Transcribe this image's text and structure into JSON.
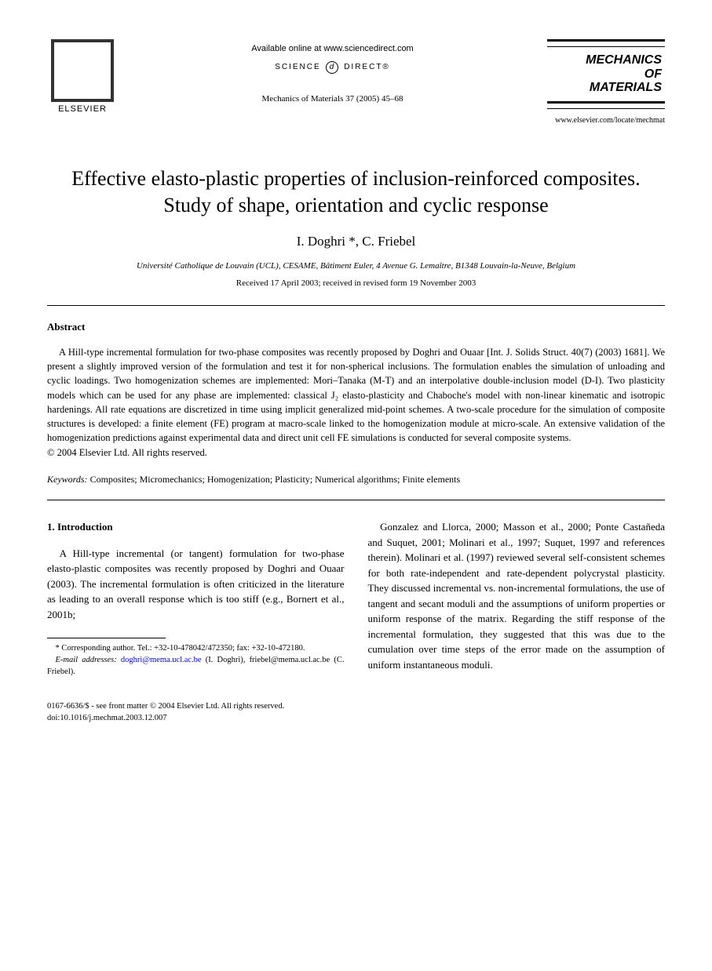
{
  "header": {
    "publisher": "ELSEVIER",
    "available_online": "Available online at www.sciencedirect.com",
    "science_direct": "SCIENCE",
    "science_direct2": "DIRECT®",
    "journal_ref": "Mechanics of Materials 37 (2005) 45–68",
    "journal_box_line1": "MECHANICS",
    "journal_box_line2": "OF",
    "journal_box_line3": "MATERIALS",
    "journal_url": "www.elsevier.com/locate/mechmat"
  },
  "paper": {
    "title": "Effective elasto-plastic properties of inclusion-reinforced composites. Study of shape, orientation and cyclic response",
    "authors": "I. Doghri *, C. Friebel",
    "affiliation": "Université Catholique de Louvain (UCL), CESAME, Bâtiment Euler, 4 Avenue G. Lemaître, B1348 Louvain-la-Neuve, Belgium",
    "dates": "Received 17 April 2003; received in revised form 19 November 2003"
  },
  "abstract": {
    "heading": "Abstract",
    "text": "A Hill-type incremental formulation for two-phase composites was recently proposed by Doghri and Ouaar [Int. J. Solids Struct. 40(7) (2003) 1681]. We present a slightly improved version of the formulation and test it for non-spherical inclusions. The formulation enables the simulation of unloading and cyclic loadings. Two homogenization schemes are implemented: Mori–Tanaka (M-T) and an interpolative double-inclusion model (D-I). Two plasticity models which can be used for any phase are implemented: classical J₂ elasto-plasticity and Chaboche's model with non-linear kinematic and isotropic hardenings. All rate equations are discretized in time using implicit generalized mid-point schemes. A two-scale procedure for the simulation of composite structures is developed: a finite element (FE) program at macro-scale linked to the homogenization module at micro-scale. An extensive validation of the homogenization predictions against experimental data and direct unit cell FE simulations is conducted for several composite systems.",
    "copyright": "© 2004 Elsevier Ltd. All rights reserved."
  },
  "keywords": {
    "label": "Keywords:",
    "text": "Composites; Micromechanics; Homogenization; Plasticity; Numerical algorithms; Finite elements"
  },
  "intro": {
    "heading": "1. Introduction",
    "col1": "A Hill-type incremental (or tangent) formulation for two-phase elasto-plastic composites was recently proposed by Doghri and Ouaar (2003). The incremental formulation is often criticized in the literature as leading to an overall response which is too stiff (e.g., Bornert et al., 2001b;",
    "col2": "Gonzalez and Llorca, 2000; Masson et al., 2000; Ponte Castañeda and Suquet, 2001; Molinari et al., 1997; Suquet, 1997 and references therein). Molinari et al. (1997) reviewed several self-consistent schemes for both rate-independent and rate-dependent polycrystal plasticity. They discussed incremental vs. non-incremental formulations, the use of tangent and secant moduli and the assumptions of uniform properties or uniform response of the matrix. Regarding the stiff response of the incremental formulation, they suggested that this was due to the cumulation over time steps of the error made on the assumption of uniform instantaneous moduli."
  },
  "footnote": {
    "corresponding": "* Corresponding author. Tel.: +32-10-478042/472350; fax: +32-10-472180.",
    "email_label": "E-mail addresses:",
    "email1": "doghri@mema.ucl.ac.be",
    "email1_name": "(I. Doghri),",
    "email2": "friebel@mema.ucl.ac.be",
    "email2_name": "(C. Friebel)."
  },
  "footer": {
    "line1": "0167-6636/$ - see front matter © 2004 Elsevier Ltd. All rights reserved.",
    "line2": "doi:10.1016/j.mechmat.2003.12.007"
  }
}
